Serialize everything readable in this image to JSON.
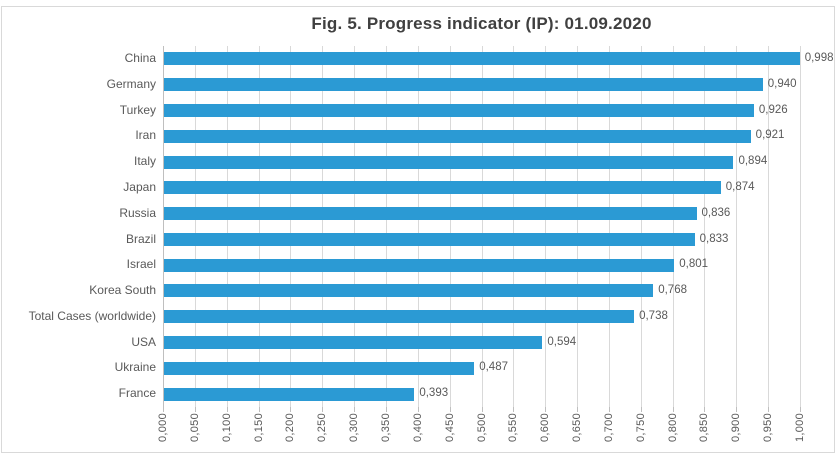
{
  "chart": {
    "title": "Fig. 5. Progress indicator (IP): 01.09.2020"
  },
  "chart_data": {
    "type": "bar",
    "orientation": "horizontal",
    "title": "Fig. 5. Progress indicator (IP): 01.09.2020",
    "categories": [
      "China",
      "Germany",
      "Turkey",
      "Iran",
      "Italy",
      "Japan",
      "Russia",
      "Brazil",
      "Israel",
      "Korea South",
      "Total Cases (worldwide)",
      "USA",
      "Ukraine",
      "France"
    ],
    "values": [
      0.998,
      0.94,
      0.926,
      0.921,
      0.894,
      0.874,
      0.836,
      0.833,
      0.801,
      0.768,
      0.738,
      0.594,
      0.487,
      0.393
    ],
    "data_labels": [
      "0,998",
      "0,940",
      "0,926",
      "0,921",
      "0,894",
      "0,874",
      "0,836",
      "0,833",
      "0,801",
      "0,768",
      "0,738",
      "0,594",
      "0,487",
      "0,393"
    ],
    "xlabel": "",
    "ylabel": "",
    "xlim": [
      0,
      1.0
    ],
    "x_tick_step": 0.05,
    "x_tick_labels": [
      "0,000",
      "0,050",
      "0,100",
      "0,150",
      "0,200",
      "0,250",
      "0,300",
      "0,350",
      "0,400",
      "0,450",
      "0,500",
      "0,550",
      "0,600",
      "0,650",
      "0,700",
      "0,750",
      "0,800",
      "0,850",
      "0,900",
      "0,950",
      "1,000"
    ],
    "grid": "vertical",
    "legend": "none",
    "colors": {
      "bar": "#2b9ad4",
      "gridline": "#d9d9d9",
      "axis_line": "#bfbfbf",
      "labels": "#595959",
      "title": "#404040",
      "frame": "#d9d9d9"
    }
  }
}
